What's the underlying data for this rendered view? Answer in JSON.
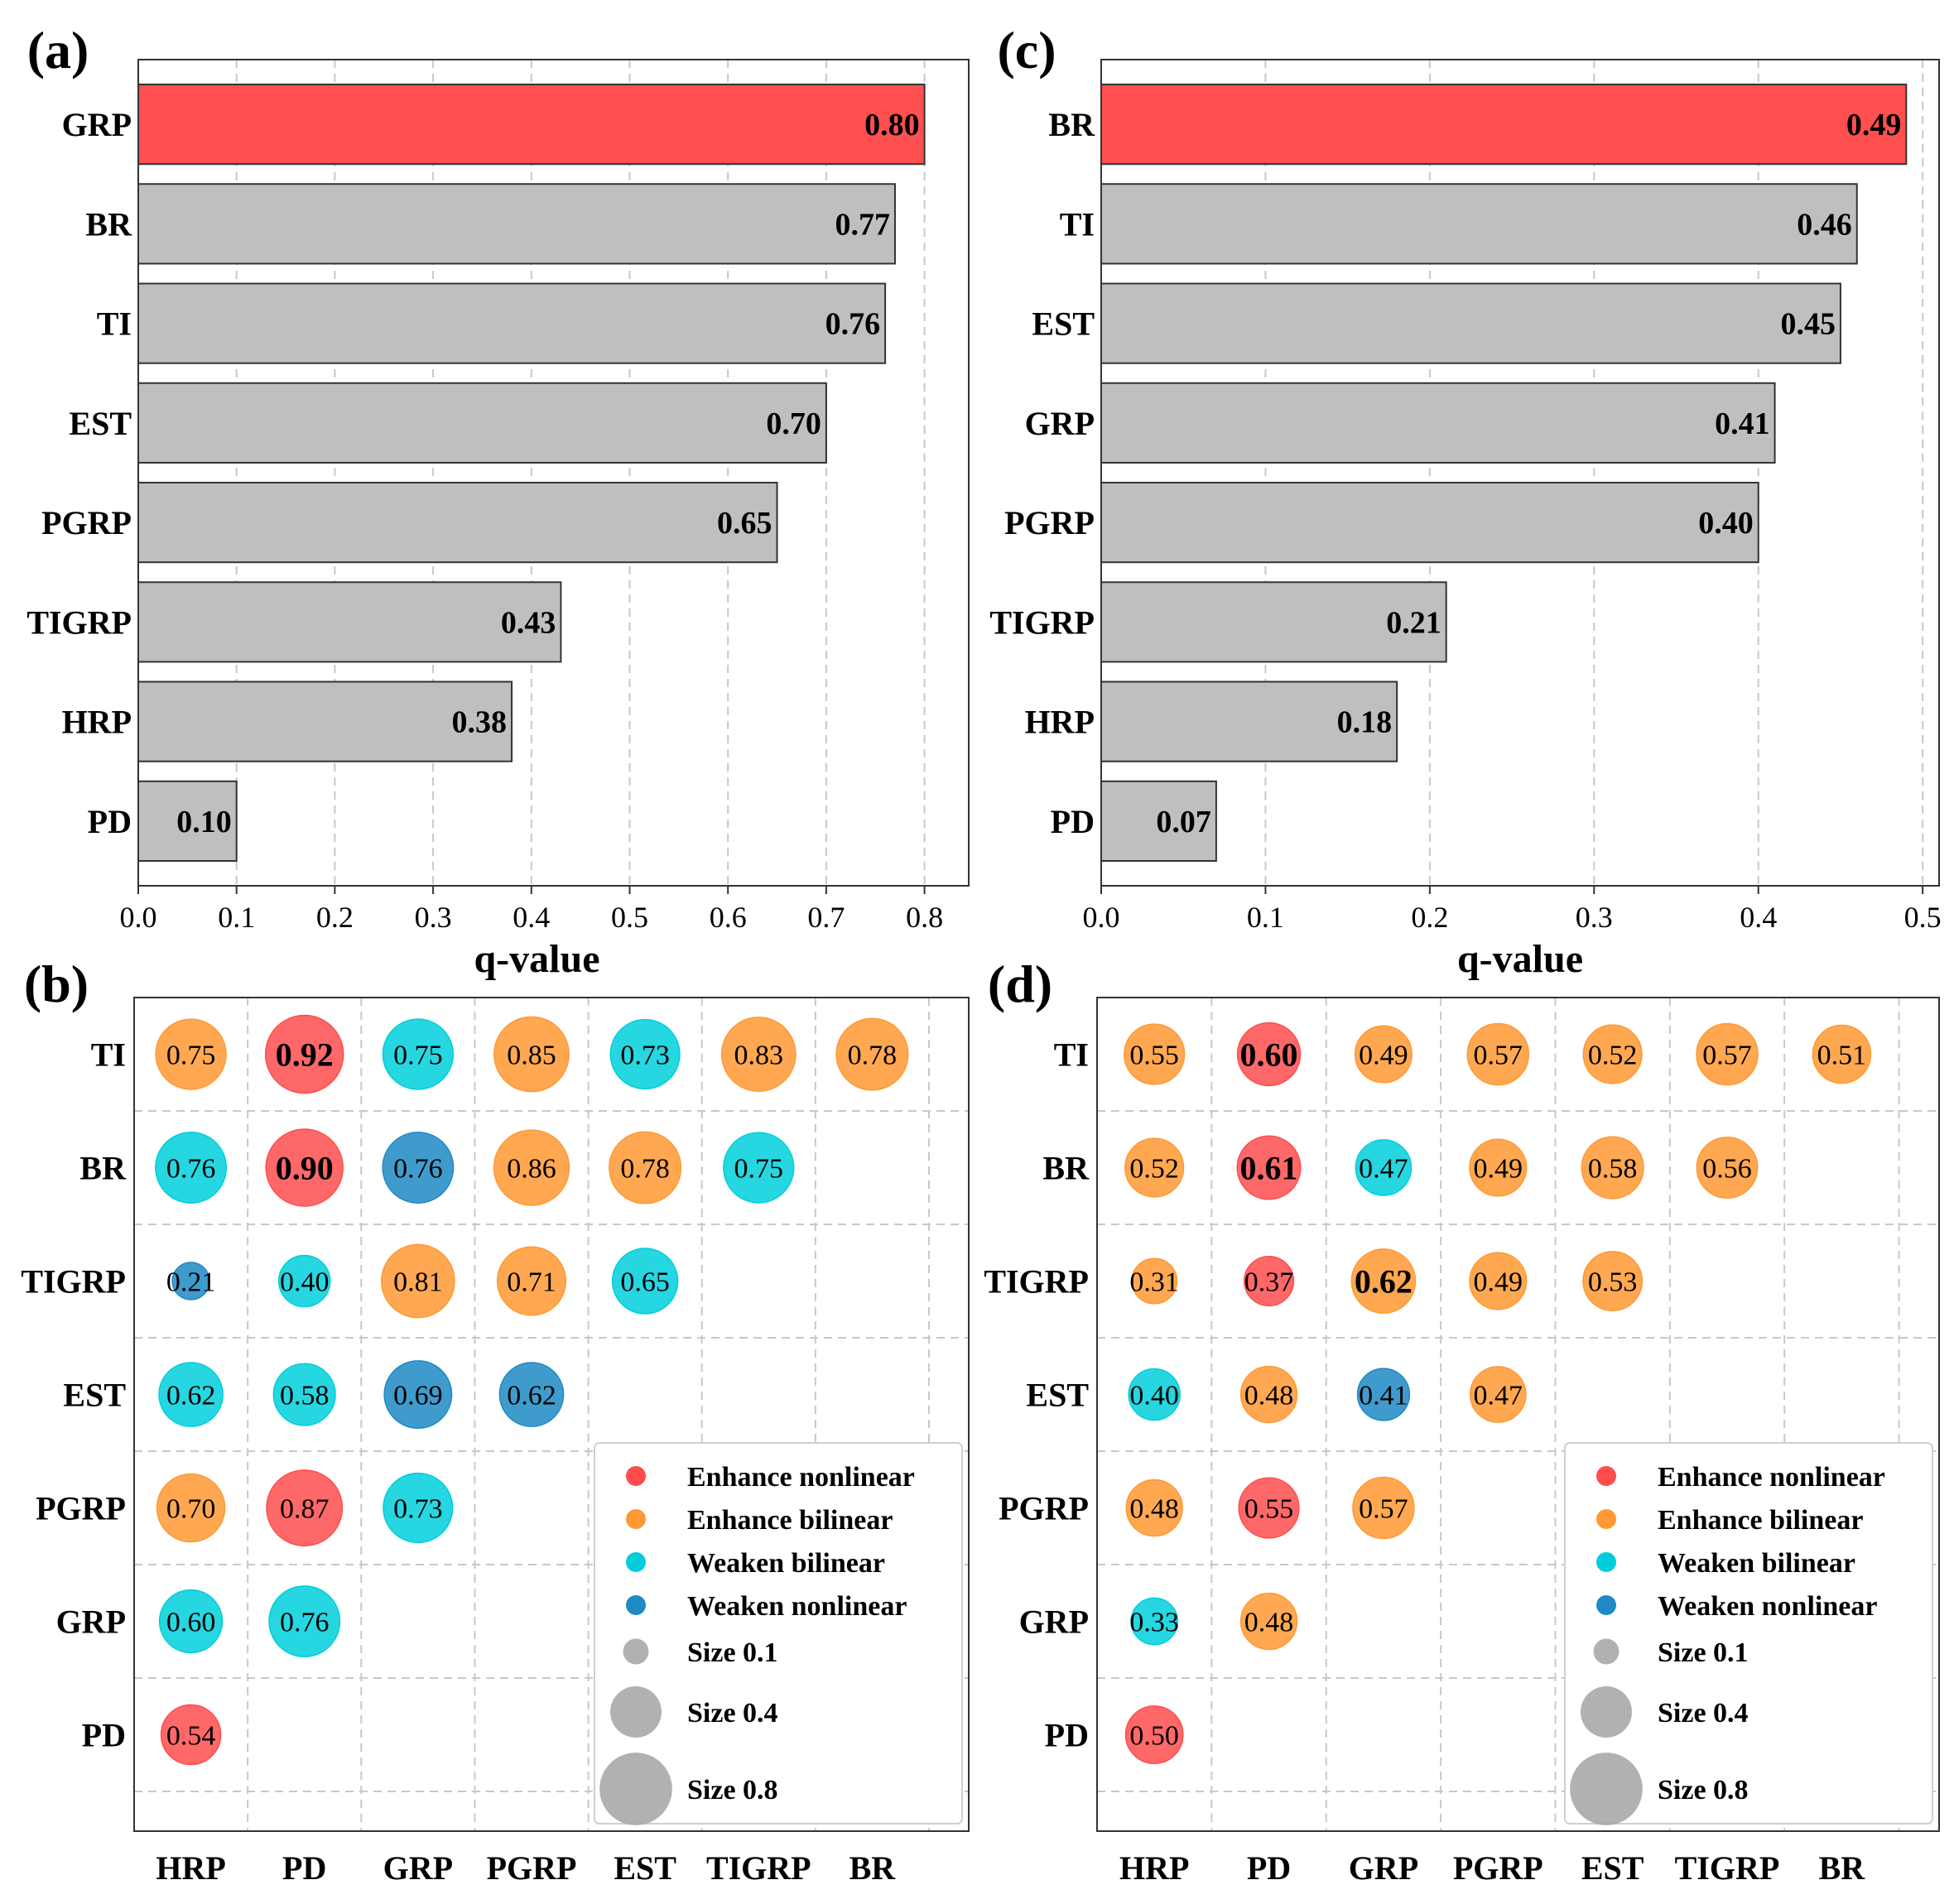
{
  "colors": {
    "highlight_bar": "#ff4f4f",
    "default_bar": "#bfbfbf",
    "bar_edge": "#333333",
    "enhance_nonlinear": "#ff4d4d",
    "enhance_bilinear": "#ff9933",
    "weaken_bilinear": "#00cfdb",
    "weaken_nonlinear": "#1f8ac4",
    "size_legend": "#a9a9a9"
  },
  "chart_data": [
    {
      "panel": "(a)",
      "type": "bar",
      "orientation": "horizontal",
      "categories": [
        "GRP",
        "BR",
        "TI",
        "EST",
        "PGRP",
        "TIGRP",
        "HRP",
        "PD"
      ],
      "values": [
        0.8,
        0.77,
        0.76,
        0.7,
        0.65,
        0.43,
        0.38,
        0.1
      ],
      "labels": [
        "0.80",
        "0.77",
        "0.76",
        "0.70",
        "0.65",
        "0.43",
        "0.38",
        "0.10"
      ],
      "highlight": "GRP",
      "xlabel": "q-value",
      "xlim": [
        0,
        0.845
      ],
      "xticks": [
        0.0,
        0.1,
        0.2,
        0.3,
        0.4,
        0.5,
        0.6,
        0.7,
        0.8
      ],
      "xtick_labels": [
        "0.0",
        "0.1",
        "0.2",
        "0.3",
        "0.4",
        "0.5",
        "0.6",
        "0.7",
        "0.8"
      ],
      "grid": "x"
    },
    {
      "panel": "(b)",
      "type": "scatter",
      "subtype": "bubble-matrix",
      "rows": [
        "TI",
        "BR",
        "TIGRP",
        "EST",
        "PGRP",
        "GRP",
        "PD"
      ],
      "columns": [
        "HRP",
        "PD",
        "GRP",
        "PGRP",
        "EST",
        "TIGRP",
        "BR"
      ],
      "cells": [
        {
          "row": "TI",
          "col": "HRP",
          "value": 0.75,
          "label": "0.75",
          "type": "Enhance bilinear",
          "bold": false
        },
        {
          "row": "TI",
          "col": "PD",
          "value": 0.92,
          "label": "0.92",
          "type": "Enhance nonlinear",
          "bold": true
        },
        {
          "row": "TI",
          "col": "GRP",
          "value": 0.75,
          "label": "0.75",
          "type": "Weaken bilinear",
          "bold": false
        },
        {
          "row": "TI",
          "col": "PGRP",
          "value": 0.85,
          "label": "0.85",
          "type": "Enhance bilinear",
          "bold": false
        },
        {
          "row": "TI",
          "col": "EST",
          "value": 0.73,
          "label": "0.73",
          "type": "Weaken bilinear",
          "bold": false
        },
        {
          "row": "TI",
          "col": "TIGRP",
          "value": 0.83,
          "label": "0.83",
          "type": "Enhance bilinear",
          "bold": false
        },
        {
          "row": "TI",
          "col": "BR",
          "value": 0.78,
          "label": "0.78",
          "type": "Enhance bilinear",
          "bold": false
        },
        {
          "row": "BR",
          "col": "HRP",
          "value": 0.76,
          "label": "0.76",
          "type": "Weaken bilinear",
          "bold": false
        },
        {
          "row": "BR",
          "col": "PD",
          "value": 0.9,
          "label": "0.90",
          "type": "Enhance nonlinear",
          "bold": true
        },
        {
          "row": "BR",
          "col": "GRP",
          "value": 0.76,
          "label": "0.76",
          "type": "Weaken nonlinear",
          "bold": false
        },
        {
          "row": "BR",
          "col": "PGRP",
          "value": 0.86,
          "label": "0.86",
          "type": "Enhance bilinear",
          "bold": false
        },
        {
          "row": "BR",
          "col": "EST",
          "value": 0.78,
          "label": "0.78",
          "type": "Enhance bilinear",
          "bold": false
        },
        {
          "row": "BR",
          "col": "TIGRP",
          "value": 0.75,
          "label": "0.75",
          "type": "Weaken bilinear",
          "bold": false
        },
        {
          "row": "TIGRP",
          "col": "HRP",
          "value": 0.21,
          "label": "0.21",
          "type": "Weaken nonlinear",
          "bold": false
        },
        {
          "row": "TIGRP",
          "col": "PD",
          "value": 0.4,
          "label": "0.40",
          "type": "Weaken bilinear",
          "bold": false
        },
        {
          "row": "TIGRP",
          "col": "GRP",
          "value": 0.81,
          "label": "0.81",
          "type": "Enhance bilinear",
          "bold": false
        },
        {
          "row": "TIGRP",
          "col": "PGRP",
          "value": 0.71,
          "label": "0.71",
          "type": "Enhance bilinear",
          "bold": false
        },
        {
          "row": "TIGRP",
          "col": "EST",
          "value": 0.65,
          "label": "0.65",
          "type": "Weaken bilinear",
          "bold": false
        },
        {
          "row": "EST",
          "col": "HRP",
          "value": 0.62,
          "label": "0.62",
          "type": "Weaken bilinear",
          "bold": false
        },
        {
          "row": "EST",
          "col": "PD",
          "value": 0.58,
          "label": "0.58",
          "type": "Weaken bilinear",
          "bold": false
        },
        {
          "row": "EST",
          "col": "GRP",
          "value": 0.69,
          "label": "0.69",
          "type": "Weaken nonlinear",
          "bold": false
        },
        {
          "row": "EST",
          "col": "PGRP",
          "value": 0.62,
          "label": "0.62",
          "type": "Weaken nonlinear",
          "bold": false
        },
        {
          "row": "PGRP",
          "col": "HRP",
          "value": 0.7,
          "label": "0.70",
          "type": "Enhance bilinear",
          "bold": false
        },
        {
          "row": "PGRP",
          "col": "PD",
          "value": 0.87,
          "label": "0.87",
          "type": "Enhance nonlinear",
          "bold": false
        },
        {
          "row": "PGRP",
          "col": "GRP",
          "value": 0.73,
          "label": "0.73",
          "type": "Weaken bilinear",
          "bold": false
        },
        {
          "row": "GRP",
          "col": "HRP",
          "value": 0.6,
          "label": "0.60",
          "type": "Weaken bilinear",
          "bold": false
        },
        {
          "row": "GRP",
          "col": "PD",
          "value": 0.76,
          "label": "0.76",
          "type": "Weaken bilinear",
          "bold": false
        },
        {
          "row": "PD",
          "col": "HRP",
          "value": 0.54,
          "label": "0.54",
          "type": "Enhance nonlinear",
          "bold": false
        }
      ],
      "legend": {
        "placement": "bottom-right",
        "types": [
          "Enhance nonlinear",
          "Enhance bilinear",
          "Weaken bilinear",
          "Weaken nonlinear"
        ],
        "sizes": [
          {
            "value": 0.1,
            "label": "Size 0.1"
          },
          {
            "value": 0.4,
            "label": "Size 0.4"
          },
          {
            "value": 0.8,
            "label": "Size 0.8"
          }
        ]
      }
    },
    {
      "panel": "(c)",
      "type": "bar",
      "orientation": "horizontal",
      "categories": [
        "BR",
        "TI",
        "EST",
        "GRP",
        "PGRP",
        "TIGRP",
        "HRP",
        "PD"
      ],
      "values": [
        0.49,
        0.46,
        0.45,
        0.41,
        0.4,
        0.21,
        0.18,
        0.07
      ],
      "labels": [
        "0.49",
        "0.46",
        "0.45",
        "0.41",
        "0.40",
        "0.21",
        "0.18",
        "0.07"
      ],
      "highlight": "BR",
      "xlabel": "q-value",
      "xlim": [
        0,
        0.51
      ],
      "xticks": [
        0.0,
        0.1,
        0.2,
        0.3,
        0.4,
        0.5
      ],
      "xtick_labels": [
        "0.0",
        "0.1",
        "0.2",
        "0.3",
        "0.4",
        "0.5"
      ],
      "grid": "x"
    },
    {
      "panel": "(d)",
      "type": "scatter",
      "subtype": "bubble-matrix",
      "rows": [
        "TI",
        "BR",
        "TIGRP",
        "EST",
        "PGRP",
        "GRP",
        "PD"
      ],
      "columns": [
        "HRP",
        "PD",
        "GRP",
        "PGRP",
        "EST",
        "TIGRP",
        "BR"
      ],
      "cells": [
        {
          "row": "TI",
          "col": "HRP",
          "value": 0.55,
          "label": "0.55",
          "type": "Enhance bilinear",
          "bold": false
        },
        {
          "row": "TI",
          "col": "PD",
          "value": 0.6,
          "label": "0.60",
          "type": "Enhance nonlinear",
          "bold": true
        },
        {
          "row": "TI",
          "col": "GRP",
          "value": 0.49,
          "label": "0.49",
          "type": "Enhance bilinear",
          "bold": false
        },
        {
          "row": "TI",
          "col": "PGRP",
          "value": 0.57,
          "label": "0.57",
          "type": "Enhance bilinear",
          "bold": false
        },
        {
          "row": "TI",
          "col": "EST",
          "value": 0.52,
          "label": "0.52",
          "type": "Enhance bilinear",
          "bold": false
        },
        {
          "row": "TI",
          "col": "TIGRP",
          "value": 0.57,
          "label": "0.57",
          "type": "Enhance bilinear",
          "bold": false
        },
        {
          "row": "TI",
          "col": "BR",
          "value": 0.51,
          "label": "0.51",
          "type": "Enhance bilinear",
          "bold": false
        },
        {
          "row": "BR",
          "col": "HRP",
          "value": 0.52,
          "label": "0.52",
          "type": "Enhance bilinear",
          "bold": false
        },
        {
          "row": "BR",
          "col": "PD",
          "value": 0.61,
          "label": "0.61",
          "type": "Enhance nonlinear",
          "bold": true
        },
        {
          "row": "BR",
          "col": "GRP",
          "value": 0.47,
          "label": "0.47",
          "type": "Weaken bilinear",
          "bold": false
        },
        {
          "row": "BR",
          "col": "PGRP",
          "value": 0.49,
          "label": "0.49",
          "type": "Enhance bilinear",
          "bold": false
        },
        {
          "row": "BR",
          "col": "EST",
          "value": 0.58,
          "label": "0.58",
          "type": "Enhance bilinear",
          "bold": false
        },
        {
          "row": "BR",
          "col": "TIGRP",
          "value": 0.56,
          "label": "0.56",
          "type": "Enhance bilinear",
          "bold": false
        },
        {
          "row": "TIGRP",
          "col": "HRP",
          "value": 0.31,
          "label": "0.31",
          "type": "Enhance bilinear",
          "bold": false
        },
        {
          "row": "TIGRP",
          "col": "PD",
          "value": 0.37,
          "label": "0.37",
          "type": "Enhance nonlinear",
          "bold": false
        },
        {
          "row": "TIGRP",
          "col": "GRP",
          "value": 0.62,
          "label": "0.62",
          "type": "Enhance bilinear",
          "bold": true
        },
        {
          "row": "TIGRP",
          "col": "PGRP",
          "value": 0.49,
          "label": "0.49",
          "type": "Enhance bilinear",
          "bold": false
        },
        {
          "row": "TIGRP",
          "col": "EST",
          "value": 0.53,
          "label": "0.53",
          "type": "Enhance bilinear",
          "bold": false
        },
        {
          "row": "EST",
          "col": "HRP",
          "value": 0.4,
          "label": "0.40",
          "type": "Weaken bilinear",
          "bold": false
        },
        {
          "row": "EST",
          "col": "PD",
          "value": 0.48,
          "label": "0.48",
          "type": "Enhance bilinear",
          "bold": false
        },
        {
          "row": "EST",
          "col": "GRP",
          "value": 0.41,
          "label": "0.41",
          "type": "Weaken nonlinear",
          "bold": false
        },
        {
          "row": "EST",
          "col": "PGRP",
          "value": 0.47,
          "label": "0.47",
          "type": "Enhance bilinear",
          "bold": false
        },
        {
          "row": "PGRP",
          "col": "HRP",
          "value": 0.48,
          "label": "0.48",
          "type": "Enhance bilinear",
          "bold": false
        },
        {
          "row": "PGRP",
          "col": "PD",
          "value": 0.55,
          "label": "0.55",
          "type": "Enhance nonlinear",
          "bold": false
        },
        {
          "row": "PGRP",
          "col": "GRP",
          "value": 0.57,
          "label": "0.57",
          "type": "Enhance bilinear",
          "bold": false
        },
        {
          "row": "GRP",
          "col": "HRP",
          "value": 0.33,
          "label": "0.33",
          "type": "Weaken bilinear",
          "bold": false
        },
        {
          "row": "GRP",
          "col": "PD",
          "value": 0.48,
          "label": "0.48",
          "type": "Enhance bilinear",
          "bold": false
        },
        {
          "row": "PD",
          "col": "HRP",
          "value": 0.5,
          "label": "0.50",
          "type": "Enhance nonlinear",
          "bold": false
        }
      ],
      "legend": {
        "placement": "bottom-right",
        "types": [
          "Enhance nonlinear",
          "Enhance bilinear",
          "Weaken bilinear",
          "Weaken nonlinear"
        ],
        "sizes": [
          {
            "value": 0.1,
            "label": "Size 0.1"
          },
          {
            "value": 0.4,
            "label": "Size 0.4"
          },
          {
            "value": 0.8,
            "label": "Size 0.8"
          }
        ]
      }
    }
  ]
}
